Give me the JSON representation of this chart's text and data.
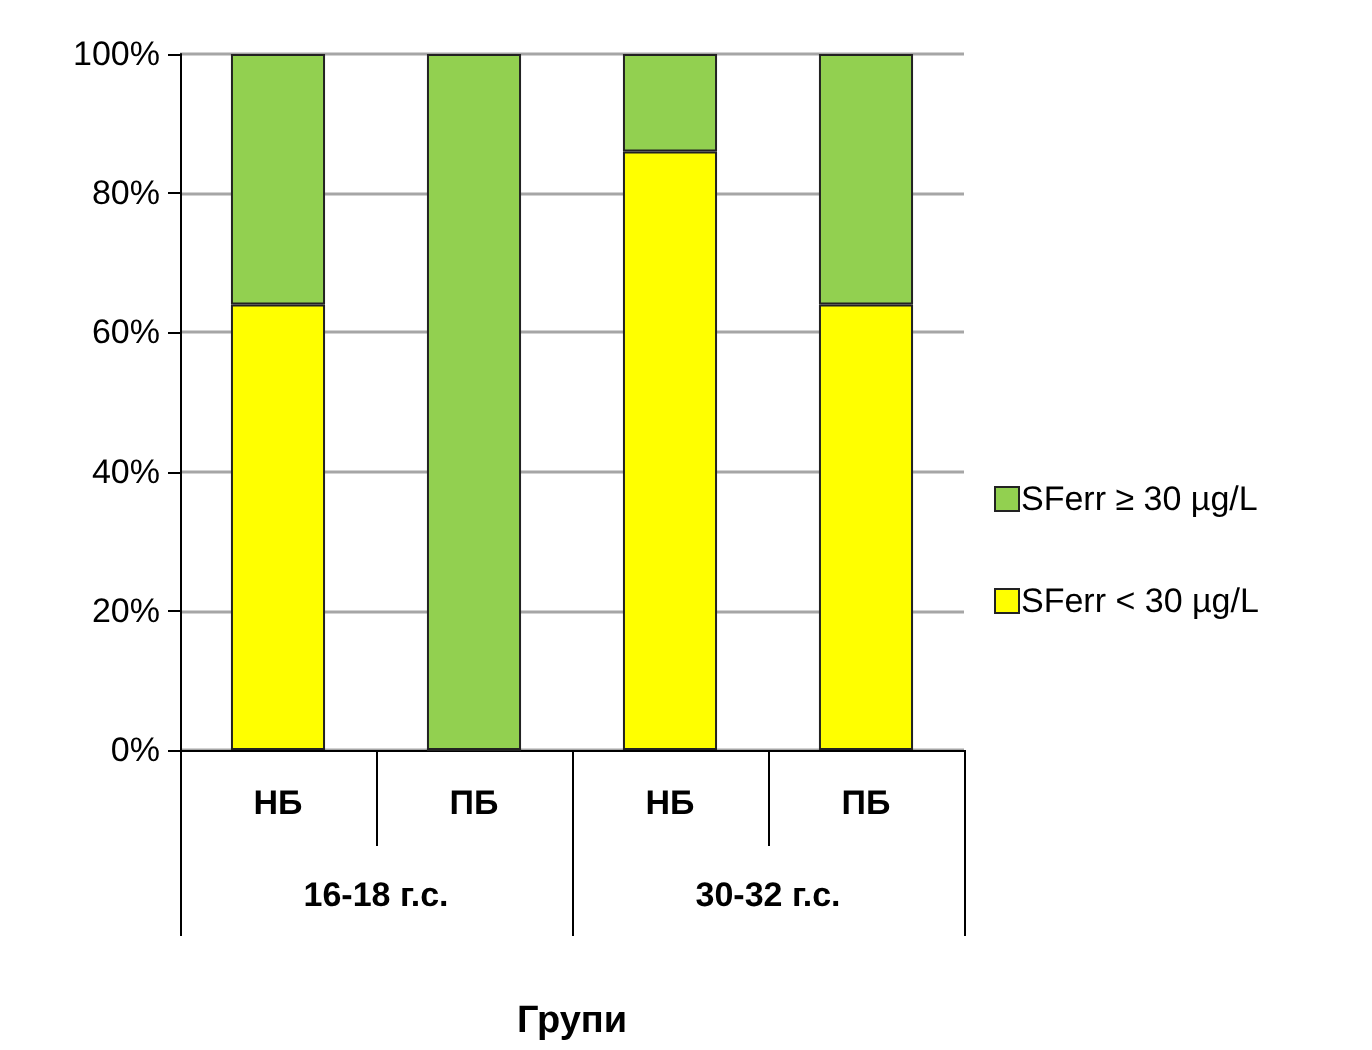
{
  "chart_data": {
    "type": "bar",
    "stacked": true,
    "xlabel": "Групи",
    "categories": [
      "НБ",
      "ПБ",
      "НБ",
      "ПБ"
    ],
    "annotations": [
      "16-18 г.с.",
      "30-32 г.с."
    ],
    "series": [
      {
        "name": "SFerr < 30 µg/L",
        "color": "#ffff00",
        "values": [
          64,
          0,
          86,
          64
        ]
      },
      {
        "name": "SFerr ≥ 30 µg/L",
        "color": "#92d050",
        "values": [
          36,
          100,
          14,
          36
        ]
      }
    ],
    "ylim": [
      0,
      100
    ],
    "yticks": [
      {
        "value": 0,
        "label": "0%"
      },
      {
        "value": 20,
        "label": "20%"
      },
      {
        "value": 40,
        "label": "40%"
      },
      {
        "value": 60,
        "label": "60%"
      },
      {
        "value": 80,
        "label": "80%"
      },
      {
        "value": 100,
        "label": "100%"
      }
    ],
    "grid": "y",
    "legend": "right"
  }
}
